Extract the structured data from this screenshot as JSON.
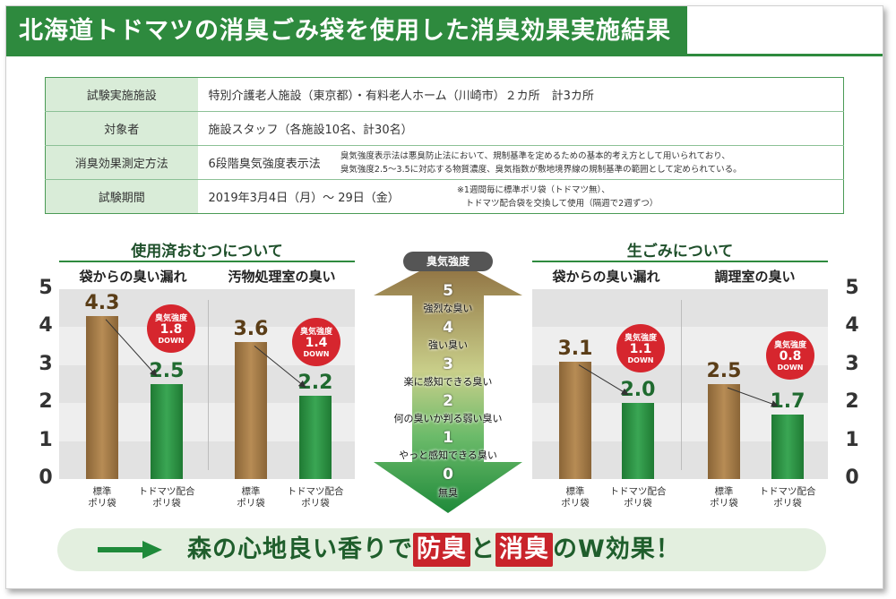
{
  "title": "北海道トドマツの消臭ごみ袋を使用した消臭効果実施結果",
  "info_table": [
    {
      "key": "試験実施施設",
      "value": "特別介護老人施設（東京都）・有料老人ホーム（川崎市）２カ所　計3カ所",
      "note": ""
    },
    {
      "key": "対象者",
      "value": "施設スタッフ（各施設10名、計30名）",
      "note": ""
    },
    {
      "key": "消臭効果測定方法",
      "value": "6段階臭気強度表示法",
      "note": "臭気強度表示法は悪臭防止法において、規制基準を定めるための基本的考え方として用いられており、\n臭気強度2.5〜3.5に対応する物質濃度、臭気指数が敷地境界線の規制基準の範囲として定められている。"
    },
    {
      "key": "試験期間",
      "value": "2019年3月4日（月）〜 29日（金）",
      "note": "※1週間毎に標準ポリ袋（トドマツ無）、\n　トドマツ配合袋を交換して使用（隔週で2週ずつ）"
    }
  ],
  "left_section": {
    "title": "使用済おむつについて",
    "groups": [
      {
        "subtitle": "袋からの臭い漏れ",
        "badge": {
          "line1": "臭気強度",
          "value": "1.8",
          "line3": "DOWN"
        }
      },
      {
        "subtitle": "汚物処理室の臭い",
        "badge": {
          "line1": "臭気強度",
          "value": "1.4",
          "line3": "DOWN"
        }
      }
    ]
  },
  "right_section": {
    "title": "生ごみについて",
    "groups": [
      {
        "subtitle": "袋からの臭い漏れ",
        "badge": {
          "line1": "臭気強度",
          "value": "1.1",
          "line3": "DOWN"
        }
      },
      {
        "subtitle": "調理室の臭い",
        "badge": {
          "line1": "臭気強度",
          "value": "0.8",
          "line3": "DOWN"
        }
      }
    ]
  },
  "x_labels": {
    "standard": "標準\nポリ袋",
    "todomatsu": "トドマツ配合\nポリ袋"
  },
  "chart_data": {
    "type": "bar",
    "ylim": [
      0,
      5
    ],
    "yticks": [
      "0",
      "1",
      "2",
      "3",
      "4",
      "5"
    ],
    "categories": [
      "袋からの臭い漏れ（使用済おむつ）",
      "汚物処理室の臭い",
      "袋からの臭い漏れ（生ごみ）",
      "調理室の臭い"
    ],
    "series": [
      {
        "name": "標準ポリ袋",
        "values": [
          4.3,
          3.6,
          3.1,
          2.5
        ],
        "labels": [
          "4.3",
          "3.6",
          "3.1",
          "2.5"
        ]
      },
      {
        "name": "トドマツ配合ポリ袋",
        "values": [
          2.5,
          2.2,
          2.0,
          1.7
        ],
        "labels": [
          "2.5",
          "2.2",
          "2.0",
          "1.7"
        ]
      }
    ]
  },
  "odor_scale": {
    "label": "臭気強度",
    "levels": [
      {
        "num": "5",
        "text": "強烈な臭い"
      },
      {
        "num": "4",
        "text": "強い臭い"
      },
      {
        "num": "3",
        "text": "楽に感知できる臭い"
      },
      {
        "num": "2",
        "text": "何の臭いか判る弱い臭い"
      },
      {
        "num": "1",
        "text": "やっと感知できる臭い"
      },
      {
        "num": "0",
        "text": "無臭"
      }
    ]
  },
  "banner": {
    "pre": "森の心地良い香りで",
    "word1": "防臭",
    "mid": "と",
    "word2": "消臭",
    "post": "のW効果！"
  },
  "colors": {
    "green": "#2e8a3e",
    "brown": "#a37a45",
    "red": "#d6262e"
  }
}
